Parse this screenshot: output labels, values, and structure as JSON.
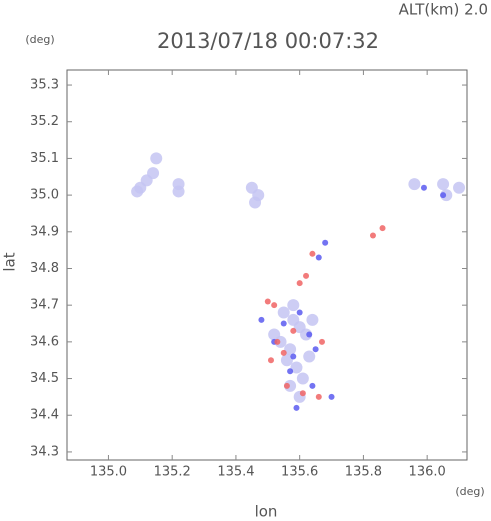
{
  "chart_data": {
    "type": "scatter",
    "title": "2013/07/18 00:07:32",
    "subtitle": "ALT(km) 2.0",
    "x_label": "lon",
    "y_label": "lat",
    "x_unit": "(deg)",
    "y_unit": "(deg)",
    "xlim": [
      134.87,
      136.125
    ],
    "ylim": [
      34.278,
      35.341
    ],
    "xticks": [
      {
        "value": 135,
        "label": "135.0"
      },
      135.2,
      135.4,
      135.6,
      135.8,
      {
        "value": 136,
        "label": "136.0"
      }
    ],
    "yticks": [
      34.3,
      34.4,
      34.5,
      34.6,
      34.7,
      34.8,
      34.9,
      {
        "value": 35,
        "label": "35.0"
      },
      35.1,
      35.2,
      35.3
    ],
    "series": [
      {
        "color": "#c4c4f2",
        "x": [
          135.1,
          135.12,
          135.09,
          135.14,
          135.15,
          135.22,
          135.22,
          135.45,
          135.46,
          135.47,
          135.96,
          136.05,
          136.06,
          136.1,
          135.55,
          135.58,
          135.6,
          135.62,
          135.54,
          135.57,
          135.63,
          135.56,
          135.59,
          135.61,
          135.52,
          135.64,
          135.57,
          135.6,
          135.58
        ],
        "values": [
          35.02,
          35.04,
          35.01,
          35.06,
          35.1,
          35.03,
          35.01,
          35.02,
          34.98,
          35.0,
          35.03,
          35.03,
          35.0,
          35.02,
          34.68,
          34.66,
          34.64,
          34.62,
          34.6,
          34.58,
          34.56,
          34.55,
          34.53,
          34.5,
          34.62,
          34.66,
          34.48,
          34.45,
          34.7
        ]
      },
      {
        "color": "#5a5af0",
        "x": [
          135.68,
          135.66,
          135.6,
          135.55,
          135.52,
          135.58,
          135.63,
          135.57,
          135.64,
          135.59,
          135.7,
          136.05,
          135.99,
          135.48,
          135.65
        ],
        "values": [
          34.87,
          34.83,
          34.68,
          34.65,
          34.6,
          34.56,
          34.62,
          34.52,
          34.48,
          34.42,
          34.45,
          35.0,
          35.02,
          34.66,
          34.58
        ]
      },
      {
        "color": "#f06464",
        "x": [
          135.83,
          135.86,
          135.64,
          135.62,
          135.6,
          135.53,
          135.55,
          135.51,
          135.56,
          135.61,
          135.66,
          135.58,
          135.5,
          135.52,
          135.67
        ],
        "values": [
          34.89,
          34.91,
          34.84,
          34.78,
          34.76,
          34.6,
          34.57,
          34.55,
          34.48,
          34.46,
          34.45,
          34.63,
          34.71,
          34.7,
          34.6
        ]
      }
    ]
  }
}
